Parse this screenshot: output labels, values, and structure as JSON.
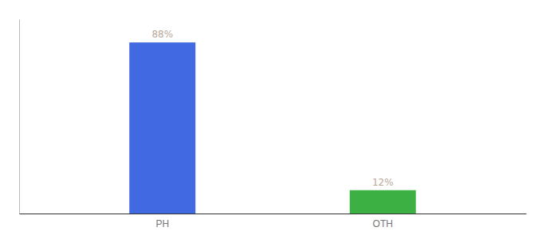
{
  "chart_data": {
    "type": "bar",
    "categories": [
      "PH",
      "OTH"
    ],
    "values": [
      88,
      12
    ],
    "value_labels": [
      "88%",
      "12%"
    ],
    "colors": [
      "#4169e1",
      "#3cb043"
    ],
    "ylim": [
      0,
      100
    ],
    "data_labels": true,
    "tick_labels": "x",
    "grid": false
  }
}
